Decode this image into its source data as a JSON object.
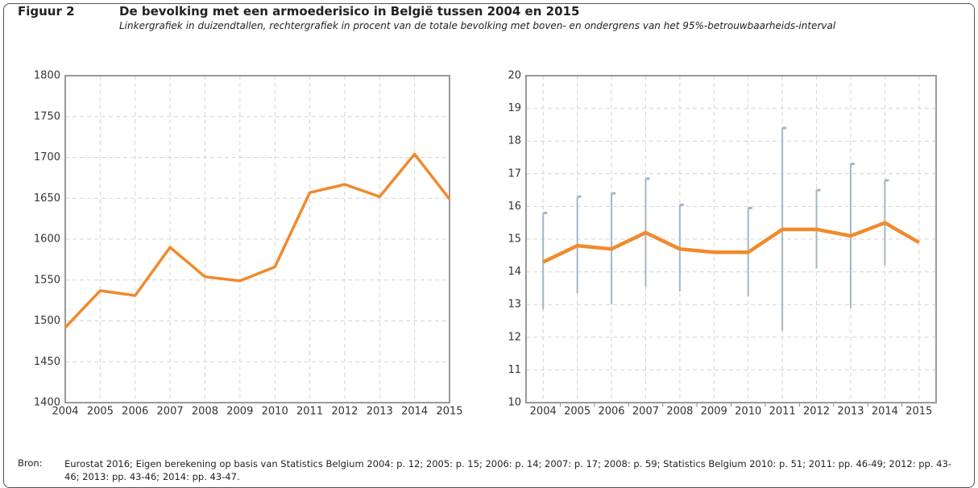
{
  "figure": {
    "label": "Figuur 2",
    "title": "De bevolking met een armoederisico in België tussen 2004 en 2015",
    "subtitle": "Linkergrafiek in duizendtallen, rechtergrafiek in procent van de totale bevolking met boven- en ondergrens van het 95%-betrouwbaarheids-interval",
    "source_label": "Bron:",
    "source": "Eurostat 2016; Eigen berekening op basis van Statistics Belgium 2004: p. 12; 2005: p. 15; 2006: p. 14; 2007: p. 17; 2008: p. 59; Statistics Belgium 2010: p. 51; 2011: pp. 46-49; 2012: pp. 43-46; 2013: pp. 43-46; 2014: pp. 43-47."
  },
  "chart_data": [
    {
      "type": "line",
      "categories": [
        "2004",
        "2005",
        "2006",
        "2007",
        "2008",
        "2009",
        "2010",
        "2011",
        "2012",
        "2013",
        "2014",
        "2015"
      ],
      "values": [
        1492,
        1537,
        1531,
        1590,
        1554,
        1549,
        1566,
        1657,
        1667,
        1652,
        1704,
        1649
      ],
      "color": "#f08a2c",
      "ylim": [
        1400,
        1800
      ],
      "yticks": [
        1400,
        1450,
        1500,
        1550,
        1600,
        1650,
        1700,
        1750,
        1800
      ],
      "grid": true,
      "x_position": "edge"
    },
    {
      "type": "line_errorbar",
      "categories": [
        "2004",
        "2005",
        "2006",
        "2007",
        "2008",
        "2009",
        "2010",
        "2011",
        "2012",
        "2013",
        "2014",
        "2015"
      ],
      "values": [
        14.3,
        14.8,
        14.7,
        15.2,
        14.7,
        14.6,
        14.6,
        15.3,
        15.3,
        15.1,
        15.5,
        14.9
      ],
      "upper": [
        15.8,
        16.3,
        16.4,
        16.85,
        16.05,
        null,
        15.95,
        18.4,
        16.5,
        17.3,
        16.8,
        null
      ],
      "lower": [
        12.85,
        13.35,
        13.0,
        13.55,
        13.4,
        null,
        13.25,
        12.2,
        14.1,
        12.9,
        14.2,
        null
      ],
      "color": "#f08a2c",
      "error_color": "#a7b5c5",
      "ylim": [
        10,
        20
      ],
      "yticks": [
        10,
        11,
        12,
        13,
        14,
        15,
        16,
        17,
        18,
        19,
        20
      ],
      "grid": true,
      "x_position": "band"
    }
  ]
}
